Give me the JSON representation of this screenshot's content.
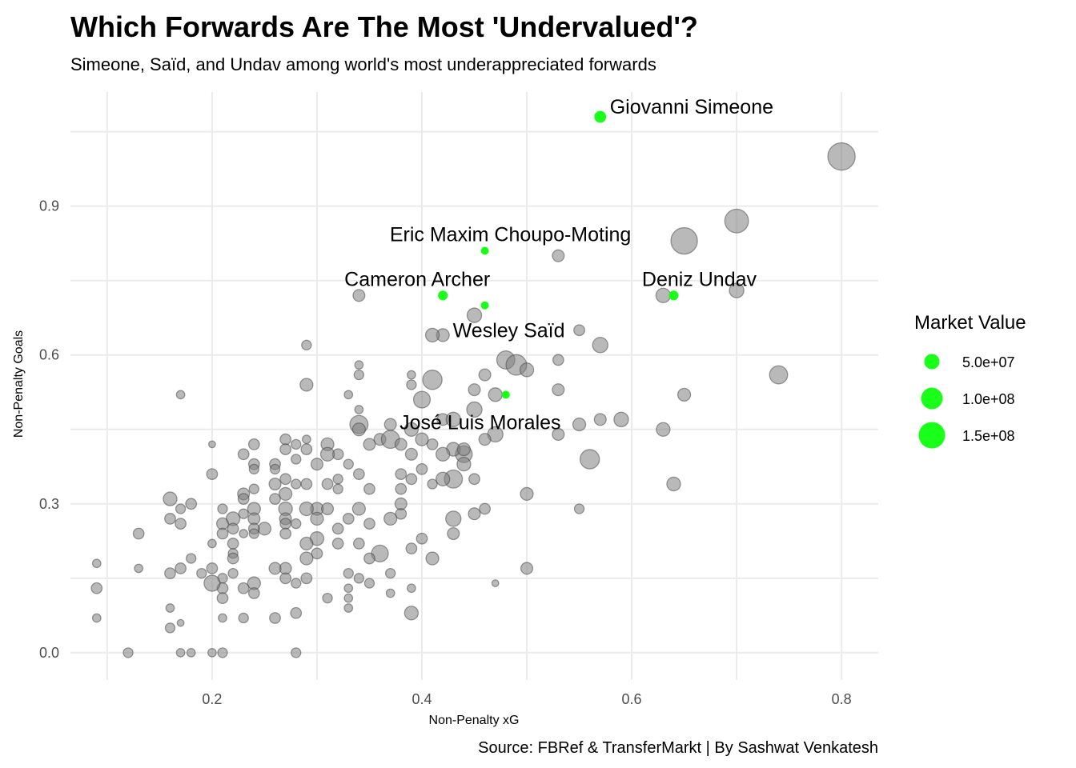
{
  "chart_data": {
    "type": "scatter",
    "title": "Which Forwards Are The Most 'Undervalued'?",
    "subtitle": "Simeone, Saïd, and Undav among world's most underappreciated forwards",
    "caption": "Source: FBRef & TransferMarkt | By Sashwat Venkatesh",
    "xlabel": "Non-Penalty xG",
    "ylabel": "Non-Penalty Goals",
    "xlim": [
      0.065,
      0.835
    ],
    "ylim": [
      -0.055,
      1.13
    ],
    "x_ticks": [
      0.2,
      0.4,
      0.6,
      0.8
    ],
    "x_tick_labels": [
      "0.2",
      "0.4",
      "0.6",
      "0.8"
    ],
    "y_ticks": [
      0.0,
      0.3,
      0.6,
      0.9
    ],
    "y_tick_labels": [
      "0.0",
      "0.3",
      "0.6",
      "0.9"
    ],
    "grid": true,
    "highlight_color": "#1aff1a",
    "base_color": "#7f7f7f",
    "legend": {
      "title": "Market Value",
      "placement": "right",
      "entries": [
        {
          "label": "5.0e+07",
          "value": 50000000
        },
        {
          "label": "1.0e+08",
          "value": 100000000
        },
        {
          "label": "1.5e+08",
          "value": 150000000
        }
      ]
    },
    "highlighted": [
      {
        "name": "Giovanni Simeone",
        "x": 0.57,
        "y": 1.08,
        "value": 30000000
      },
      {
        "name": "Eric Maxim Choupo-Moting",
        "x": 0.46,
        "y": 0.81,
        "value": 12000000
      },
      {
        "name": "Cameron Archer",
        "x": 0.42,
        "y": 0.72,
        "value": 20000000
      },
      {
        "name": "Deniz Undav",
        "x": 0.64,
        "y": 0.72,
        "value": 20000000
      },
      {
        "name": "Wesley Saïd",
        "x": 0.46,
        "y": 0.7,
        "value": 6000000
      },
      {
        "name": "José Luis Morales",
        "x": 0.48,
        "y": 0.52,
        "value": 8000000
      }
    ],
    "points": [
      [
        0.8,
        1.0,
        160
      ],
      [
        0.7,
        0.87,
        120
      ],
      [
        0.65,
        0.83,
        150
      ],
      [
        0.53,
        0.8,
        30
      ],
      [
        0.7,
        0.73,
        45
      ],
      [
        0.63,
        0.72,
        45
      ],
      [
        0.57,
        0.62,
        50
      ],
      [
        0.55,
        0.65,
        25
      ],
      [
        0.53,
        0.59,
        25
      ],
      [
        0.74,
        0.56,
        70
      ],
      [
        0.65,
        0.52,
        35
      ],
      [
        0.53,
        0.53,
        30
      ],
      [
        0.59,
        0.47,
        45
      ],
      [
        0.57,
        0.47,
        30
      ],
      [
        0.55,
        0.46,
        35
      ],
      [
        0.63,
        0.45,
        40
      ],
      [
        0.53,
        0.44,
        30
      ],
      [
        0.56,
        0.39,
        80
      ],
      [
        0.64,
        0.34,
        40
      ],
      [
        0.55,
        0.29,
        20
      ],
      [
        0.5,
        0.32,
        35
      ],
      [
        0.5,
        0.17,
        30
      ],
      [
        0.47,
        0.14,
        10
      ],
      [
        0.45,
        0.68,
        45
      ],
      [
        0.42,
        0.64,
        35
      ],
      [
        0.41,
        0.64,
        40
      ],
      [
        0.48,
        0.59,
        70
      ],
      [
        0.49,
        0.58,
        90
      ],
      [
        0.5,
        0.57,
        40
      ],
      [
        0.41,
        0.55,
        80
      ],
      [
        0.46,
        0.56,
        30
      ],
      [
        0.47,
        0.52,
        40
      ],
      [
        0.4,
        0.51,
        60
      ],
      [
        0.45,
        0.53,
        30
      ],
      [
        0.45,
        0.49,
        50
      ],
      [
        0.42,
        0.47,
        30
      ],
      [
        0.47,
        0.44,
        50
      ],
      [
        0.46,
        0.43,
        30
      ],
      [
        0.44,
        0.4,
        60
      ],
      [
        0.43,
        0.41,
        40
      ],
      [
        0.44,
        0.38,
        40
      ],
      [
        0.43,
        0.35,
        70
      ],
      [
        0.42,
        0.35,
        40
      ],
      [
        0.41,
        0.34,
        20
      ],
      [
        0.4,
        0.37,
        25
      ],
      [
        0.45,
        0.35,
        25
      ],
      [
        0.46,
        0.29,
        25
      ],
      [
        0.45,
        0.28,
        30
      ],
      [
        0.43,
        0.27,
        50
      ],
      [
        0.43,
        0.24,
        30
      ],
      [
        0.41,
        0.19,
        35
      ],
      [
        0.4,
        0.23,
        25
      ],
      [
        0.39,
        0.21,
        25
      ],
      [
        0.39,
        0.08,
        40
      ],
      [
        0.39,
        0.35,
        25
      ],
      [
        0.39,
        0.56,
        15
      ],
      [
        0.39,
        0.54,
        20
      ],
      [
        0.36,
        0.43,
        30
      ],
      [
        0.37,
        0.43,
        70
      ],
      [
        0.37,
        0.46,
        30
      ],
      [
        0.39,
        0.45,
        40
      ],
      [
        0.38,
        0.42,
        30
      ],
      [
        0.39,
        0.4,
        30
      ],
      [
        0.38,
        0.33,
        25
      ],
      [
        0.38,
        0.36,
        25
      ],
      [
        0.38,
        0.28,
        25
      ],
      [
        0.38,
        0.3,
        30
      ],
      [
        0.37,
        0.27,
        35
      ],
      [
        0.36,
        0.2,
        60
      ],
      [
        0.35,
        0.42,
        30
      ],
      [
        0.34,
        0.46,
        70
      ],
      [
        0.34,
        0.45,
        35
      ],
      [
        0.34,
        0.56,
        20
      ],
      [
        0.34,
        0.58,
        15
      ],
      [
        0.33,
        0.52,
        15
      ],
      [
        0.34,
        0.49,
        15
      ],
      [
        0.35,
        0.33,
        25
      ],
      [
        0.34,
        0.29,
        35
      ],
      [
        0.35,
        0.26,
        25
      ],
      [
        0.34,
        0.22,
        25
      ],
      [
        0.35,
        0.19,
        25
      ],
      [
        0.34,
        0.15,
        20
      ],
      [
        0.34,
        0.72,
        30
      ],
      [
        0.33,
        0.38,
        20
      ],
      [
        0.34,
        0.36,
        25
      ],
      [
        0.32,
        0.35,
        20
      ],
      [
        0.32,
        0.33,
        20
      ],
      [
        0.32,
        0.4,
        25
      ],
      [
        0.31,
        0.42,
        35
      ],
      [
        0.31,
        0.4,
        40
      ],
      [
        0.3,
        0.38,
        30
      ],
      [
        0.31,
        0.34,
        25
      ],
      [
        0.3,
        0.29,
        35
      ],
      [
        0.31,
        0.29,
        30
      ],
      [
        0.3,
        0.27,
        35
      ],
      [
        0.3,
        0.23,
        40
      ],
      [
        0.32,
        0.25,
        25
      ],
      [
        0.33,
        0.27,
        25
      ],
      [
        0.32,
        0.22,
        25
      ],
      [
        0.3,
        0.2,
        25
      ],
      [
        0.29,
        0.62,
        20
      ],
      [
        0.29,
        0.54,
        35
      ],
      [
        0.29,
        0.43,
        15
      ],
      [
        0.29,
        0.41,
        25
      ],
      [
        0.29,
        0.34,
        25
      ],
      [
        0.29,
        0.29,
        40
      ],
      [
        0.29,
        0.22,
        35
      ],
      [
        0.29,
        0.19,
        35
      ],
      [
        0.28,
        0.14,
        20
      ],
      [
        0.29,
        0.15,
        25
      ],
      [
        0.28,
        0.08,
        25
      ],
      [
        0.28,
        0.0,
        20
      ],
      [
        0.27,
        0.43,
        25
      ],
      [
        0.27,
        0.41,
        25
      ],
      [
        0.28,
        0.42,
        20
      ],
      [
        0.28,
        0.39,
        20
      ],
      [
        0.28,
        0.34,
        20
      ],
      [
        0.27,
        0.35,
        25
      ],
      [
        0.27,
        0.32,
        35
      ],
      [
        0.27,
        0.29,
        40
      ],
      [
        0.27,
        0.27,
        30
      ],
      [
        0.27,
        0.26,
        25
      ],
      [
        0.28,
        0.26,
        20
      ],
      [
        0.27,
        0.24,
        25
      ],
      [
        0.27,
        0.17,
        30
      ],
      [
        0.26,
        0.17,
        30
      ],
      [
        0.27,
        0.15,
        25
      ],
      [
        0.26,
        0.07,
        25
      ],
      [
        0.26,
        0.38,
        25
      ],
      [
        0.26,
        0.37,
        20
      ],
      [
        0.26,
        0.34,
        30
      ],
      [
        0.26,
        0.31,
        25
      ],
      [
        0.25,
        0.25,
        35
      ],
      [
        0.24,
        0.42,
        25
      ],
      [
        0.24,
        0.38,
        25
      ],
      [
        0.24,
        0.37,
        20
      ],
      [
        0.24,
        0.33,
        20
      ],
      [
        0.24,
        0.29,
        35
      ],
      [
        0.24,
        0.27,
        30
      ],
      [
        0.24,
        0.25,
        25
      ],
      [
        0.24,
        0.24,
        20
      ],
      [
        0.24,
        0.14,
        35
      ],
      [
        0.24,
        0.12,
        25
      ],
      [
        0.23,
        0.4,
        25
      ],
      [
        0.23,
        0.32,
        30
      ],
      [
        0.23,
        0.31,
        25
      ],
      [
        0.23,
        0.28,
        20
      ],
      [
        0.23,
        0.24,
        15
      ],
      [
        0.23,
        0.13,
        25
      ],
      [
        0.23,
        0.07,
        20
      ],
      [
        0.22,
        0.27,
        40
      ],
      [
        0.22,
        0.25,
        25
      ],
      [
        0.22,
        0.22,
        25
      ],
      [
        0.22,
        0.2,
        20
      ],
      [
        0.22,
        0.19,
        25
      ],
      [
        0.22,
        0.16,
        20
      ],
      [
        0.21,
        0.29,
        20
      ],
      [
        0.21,
        0.26,
        30
      ],
      [
        0.21,
        0.24,
        25
      ],
      [
        0.21,
        0.15,
        20
      ],
      [
        0.21,
        0.13,
        25
      ],
      [
        0.21,
        0.11,
        25
      ],
      [
        0.21,
        0.07,
        15
      ],
      [
        0.21,
        0.0,
        20
      ],
      [
        0.2,
        0.42,
        10
      ],
      [
        0.2,
        0.36,
        25
      ],
      [
        0.2,
        0.22,
        15
      ],
      [
        0.2,
        0.17,
        25
      ],
      [
        0.2,
        0.14,
        55
      ],
      [
        0.2,
        0.0,
        15
      ],
      [
        0.19,
        0.16,
        20
      ],
      [
        0.18,
        0.3,
        25
      ],
      [
        0.18,
        0.19,
        20
      ],
      [
        0.18,
        0.0,
        15
      ],
      [
        0.17,
        0.52,
        15
      ],
      [
        0.17,
        0.29,
        20
      ],
      [
        0.17,
        0.26,
        25
      ],
      [
        0.17,
        0.17,
        25
      ],
      [
        0.17,
        0.06,
        10
      ],
      [
        0.17,
        0.0,
        15
      ],
      [
        0.16,
        0.31,
        40
      ],
      [
        0.16,
        0.27,
        25
      ],
      [
        0.16,
        0.16,
        25
      ],
      [
        0.16,
        0.09,
        15
      ],
      [
        0.16,
        0.05,
        20
      ],
      [
        0.13,
        0.24,
        25
      ],
      [
        0.13,
        0.17,
        15
      ],
      [
        0.12,
        0.0,
        20
      ],
      [
        0.09,
        0.18,
        15
      ],
      [
        0.09,
        0.13,
        25
      ],
      [
        0.09,
        0.07,
        15
      ],
      [
        0.31,
        0.11,
        20
      ],
      [
        0.33,
        0.16,
        20
      ],
      [
        0.33,
        0.13,
        15
      ],
      [
        0.33,
        0.11,
        15
      ],
      [
        0.33,
        0.09,
        15
      ],
      [
        0.35,
        0.14,
        20
      ],
      [
        0.37,
        0.16,
        20
      ],
      [
        0.37,
        0.12,
        15
      ],
      [
        0.39,
        0.13,
        15
      ],
      [
        0.42,
        0.4,
        40
      ],
      [
        0.43,
        0.47,
        45
      ],
      [
        0.44,
        0.41,
        35
      ],
      [
        0.41,
        0.42,
        25
      ],
      [
        0.4,
        0.43,
        35
      ]
    ]
  }
}
